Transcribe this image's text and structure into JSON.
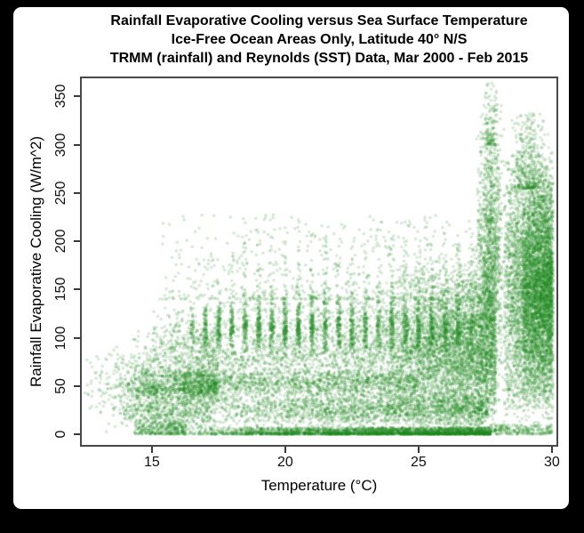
{
  "page": {
    "background_color": "#000000",
    "card_color": "#ffffff"
  },
  "chart_data": {
    "type": "scatter",
    "title_lines": [
      "Rainfall Evaporative Cooling versus Sea Surface Temperature",
      "Ice-Free Ocean Areas Only, Latitude 40° N/S",
      "TRMM (rainfall) and Reynolds (SST) Data, Mar 2000 - Feb 2015"
    ],
    "xlabel": "Temperature (°C)",
    "ylabel": "Rainfall Evaporative Cooling (W/m^2)",
    "xlim": [
      12.37,
      30.17
    ],
    "ylim": [
      -11.1,
      368.9
    ],
    "x_ticks": [
      15,
      20,
      25,
      30
    ],
    "y_ticks": [
      0,
      50,
      100,
      150,
      200,
      250,
      300,
      350
    ],
    "grid": false,
    "legend": "none",
    "frame_color": "#484848",
    "tick_color": "#3a3a3a",
    "point_color": "#228B22",
    "point_alpha": 0.16,
    "point_radius": 1.8,
    "seed": 20150301,
    "clusters": [
      {
        "n": 350,
        "x": [
          12.4,
          15.2,
          0.55
        ],
        "y": [
          2,
          95,
          "mid"
        ],
        "note": "sparse cold-water points"
      },
      {
        "n": 800,
        "x": [
          13.9,
          17.5,
          0.6
        ],
        "y": [
          32,
          62,
          "mid"
        ],
        "note": "dense ridge near 50 W/m^2"
      },
      {
        "n": 500,
        "x": [
          13.8,
          17.2,
          0.7
        ],
        "y": [
          4,
          40,
          "mid"
        ],
        "note": "fill below left ridge"
      },
      {
        "n": 450,
        "x": [
          14.2,
          17.5,
          0.7
        ],
        "y": [
          60,
          108,
          2
        ],
        "note": "fade above left ridge"
      },
      {
        "n": 3800,
        "x": [
          15.0,
          27.6,
          0.75
        ],
        "y": [
          8,
          148,
          "mid"
        ],
        "note": "broad central cloud"
      },
      {
        "n": 1000,
        "x": [
          16.0,
          25.0,
          1
        ],
        "y": [
          38,
          68,
          "mid"
        ],
        "note": "secondary density band"
      },
      {
        "n": 650,
        "x": [
          15.2,
          27.4,
          0.8
        ],
        "y": [
          140,
          228,
          2.2
        ],
        "note": "sparse upper scatter to ~225"
      },
      {
        "n": 2400,
        "x": [
          16.5,
          27.0,
          1
        ],
        "xstep": 0.5,
        "y": [
          82,
          138,
          "mid"
        ],
        "note": "vertical striations every 0.5C at 90-135"
      },
      {
        "n": 450,
        "x": [
          18.0,
          27.0,
          1
        ],
        "xstep": 0.5,
        "y": [
          135,
          208,
          2
        ],
        "note": "striation tails upward"
      },
      {
        "n": 3000,
        "x": [
          16.3,
          27.7,
          0.6
        ],
        "y": [
          0,
          7,
          2
        ],
        "note": "dense bottom rim near zero"
      },
      {
        "n": 350,
        "x": [
          14.3,
          16.3,
          0.8
        ],
        "y": [
          0,
          14,
          1.5
        ],
        "note": "thin rim at left"
      },
      {
        "n": 260,
        "x": [
          27.7,
          30.0,
          1
        ],
        "y": [
          0,
          10,
          1.5
        ],
        "note": "sparse low points far right"
      },
      {
        "n": 1800,
        "x": [
          17.0,
          27.6,
          0.7
        ],
        "y": [
          6,
          45,
          "mid"
        ],
        "note": "fill between rim and cloud"
      },
      {
        "n": 3200,
        "x": [
          23.5,
          27.9,
          0.55
        ],
        "y": [
          2,
          185,
          "mid"
        ],
        "note": "dense warm-water hook"
      },
      {
        "n": 1500,
        "x": [
          27.15,
          28.25,
          "mid"
        ],
        "y": [
          15,
          345,
          "mid"
        ],
        "note": "narrow plume at ~27.7C"
      },
      {
        "n": 120,
        "x": [
          27.4,
          28.0,
          "mid"
        ],
        "y": [
          300,
          365,
          2
        ],
        "note": "plume top reaching ~360"
      },
      {
        "n": 4600,
        "x": [
          28.2,
          30.05,
          0.75
        ],
        "y": [
          5,
          300,
          "mid"
        ],
        "note": "wide dense plume 28.2-30C"
      },
      {
        "n": 1800,
        "x": [
          28.9,
          30.0,
          0.8
        ],
        "y": [
          20,
          260,
          "mid"
        ],
        "note": "extra core density at right edge"
      },
      {
        "n": 380,
        "x": [
          28.4,
          29.9,
          "mid"
        ],
        "y": [
          255,
          333,
          2
        ],
        "note": "wide plume top ~300-330"
      }
    ]
  }
}
